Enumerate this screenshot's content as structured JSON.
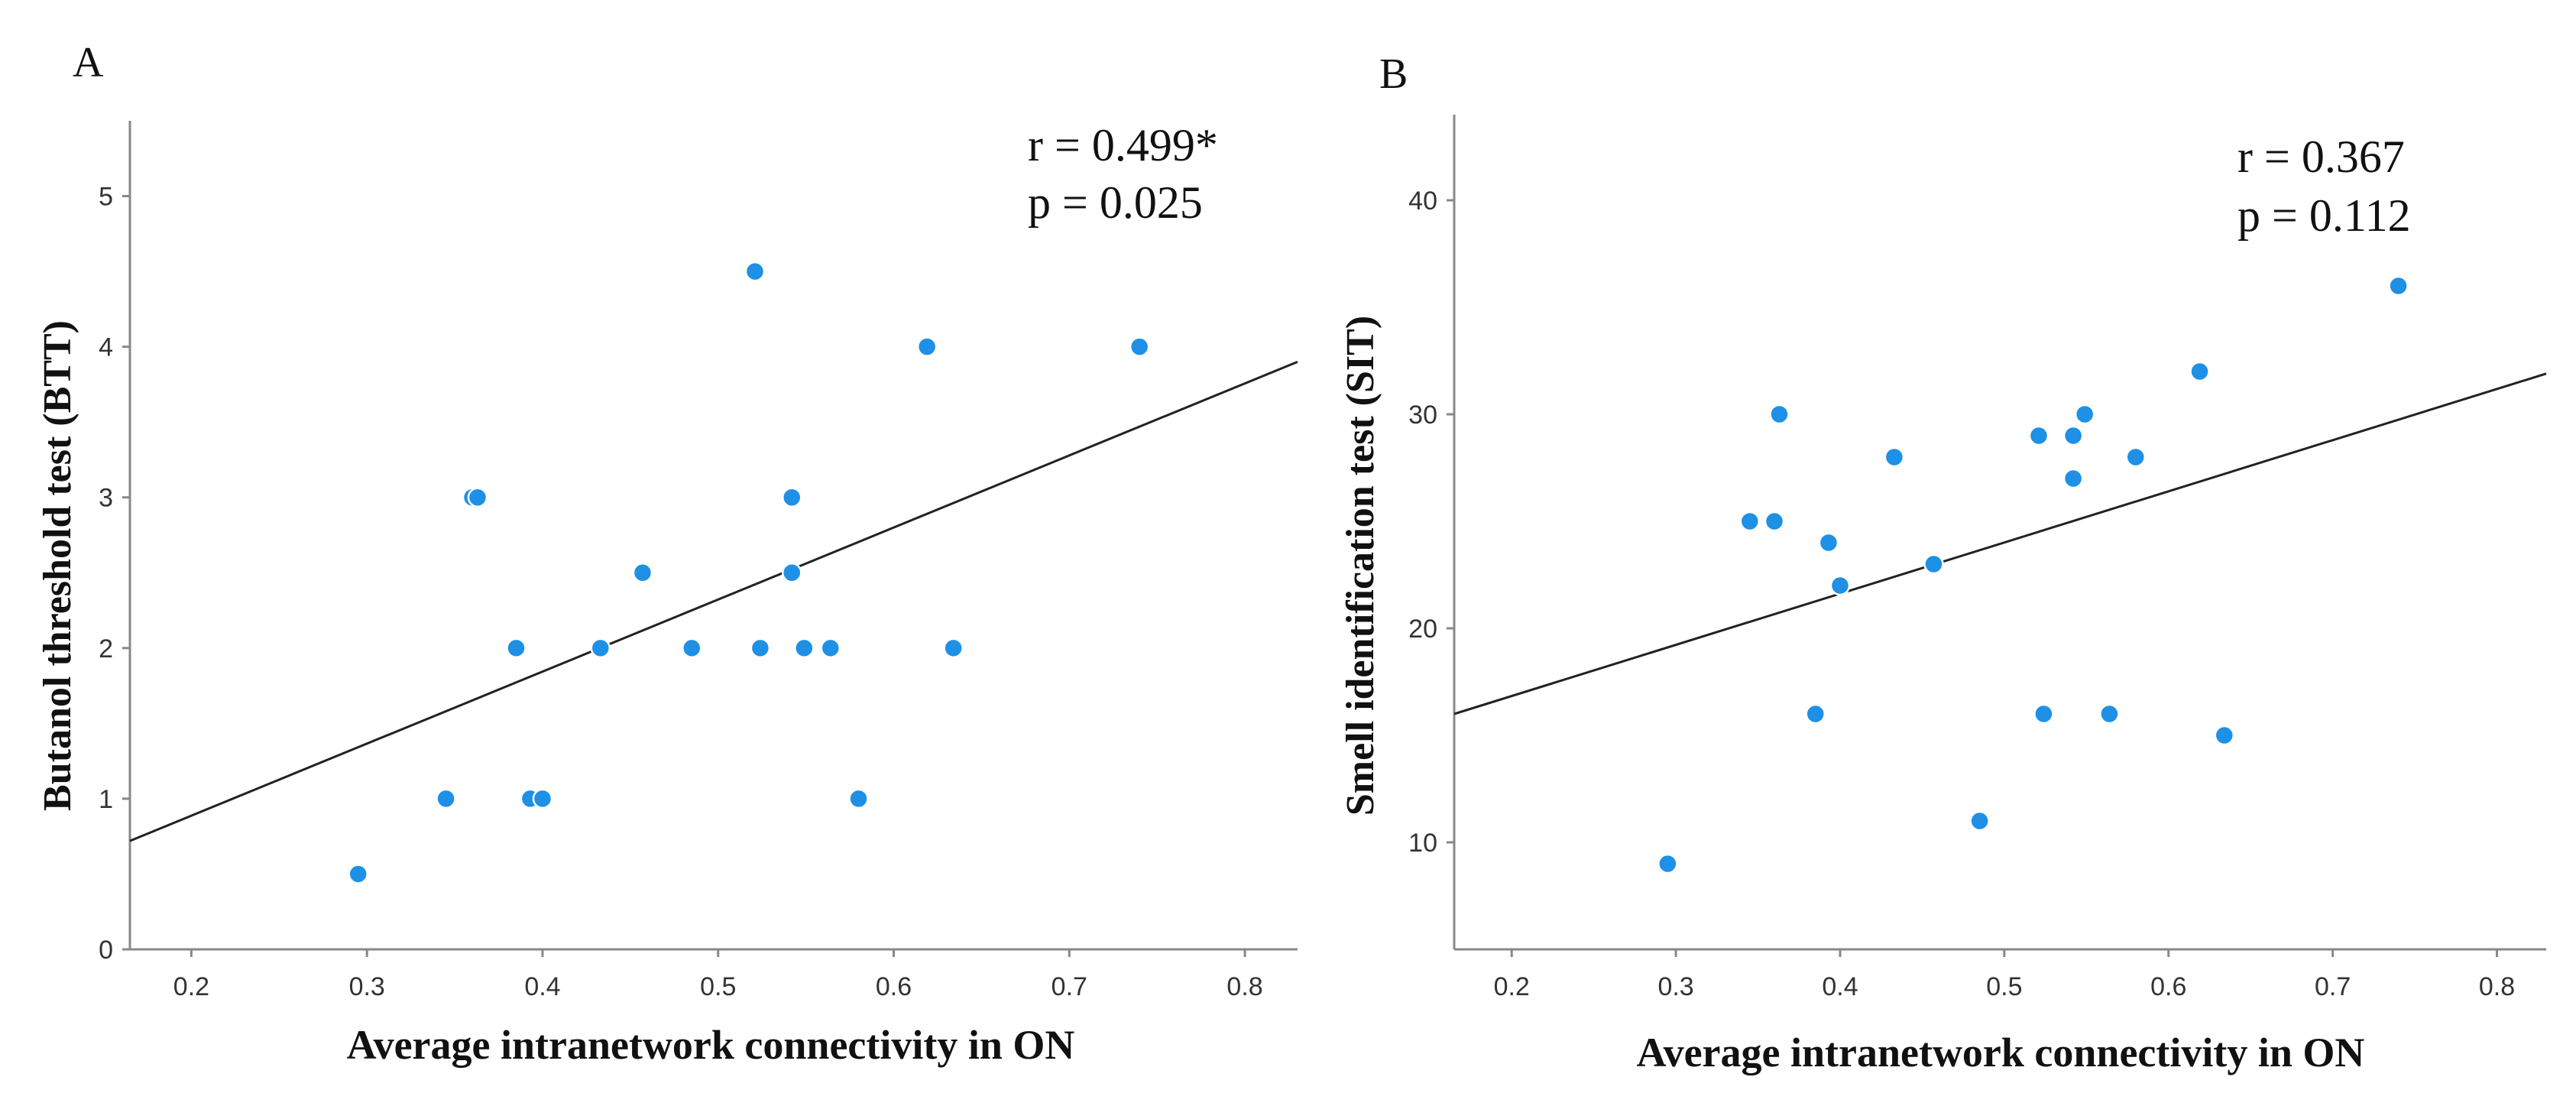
{
  "figure": {
    "marker_color": "#1e90e6",
    "line_color": "#222222"
  },
  "chart_data": [
    {
      "panel_label": "A",
      "type": "scatter",
      "xlabel": "Average intranetwork connectivity in ON",
      "ylabel": "Butanol threshold test (BTT)",
      "xlim": [
        0.165,
        0.83
      ],
      "ylim": [
        0,
        5.5
      ],
      "xticks": [
        "0.2",
        "0.3",
        "0.4",
        "0.5",
        "0.6",
        "0.7",
        "0.8"
      ],
      "yticks": [
        "0",
        "1",
        "2",
        "3",
        "4",
        "5"
      ],
      "annotation": {
        "r": "r = 0.499*",
        "p": "p = 0.025"
      },
      "fit_line": {
        "x": [
          0.165,
          0.83
        ],
        "y": [
          0.72,
          3.9
        ]
      },
      "points": [
        {
          "x": 0.295,
          "y": 0.5
        },
        {
          "x": 0.345,
          "y": 1.0
        },
        {
          "x": 0.36,
          "y": 3.0
        },
        {
          "x": 0.363,
          "y": 3.0
        },
        {
          "x": 0.385,
          "y": 2.0
        },
        {
          "x": 0.393,
          "y": 1.0
        },
        {
          "x": 0.4,
          "y": 1.0
        },
        {
          "x": 0.433,
          "y": 2.0
        },
        {
          "x": 0.457,
          "y": 2.5
        },
        {
          "x": 0.485,
          "y": 2.0
        },
        {
          "x": 0.521,
          "y": 4.5
        },
        {
          "x": 0.524,
          "y": 2.0
        },
        {
          "x": 0.542,
          "y": 3.0
        },
        {
          "x": 0.542,
          "y": 2.5
        },
        {
          "x": 0.549,
          "y": 2.0
        },
        {
          "x": 0.564,
          "y": 2.0
        },
        {
          "x": 0.58,
          "y": 1.0
        },
        {
          "x": 0.619,
          "y": 4.0
        },
        {
          "x": 0.634,
          "y": 2.0
        },
        {
          "x": 0.74,
          "y": 4.0
        }
      ]
    },
    {
      "panel_label": "B",
      "type": "scatter",
      "xlabel": "Average intranetwork connectivity in ON",
      "ylabel": "Smell identification test (SIT)",
      "xlim": [
        0.165,
        0.83
      ],
      "ylim": [
        5,
        44
      ],
      "xticks": [
        "0.2",
        "0.3",
        "0.4",
        "0.5",
        "0.6",
        "0.7",
        "0.8"
      ],
      "yticks": [
        "10",
        "20",
        "30",
        "40"
      ],
      "annotation": {
        "r": "r = 0.367",
        "p": "p = 0.112"
      },
      "fit_line": {
        "x": [
          0.165,
          0.83
        ],
        "y": [
          16.0,
          31.9
        ]
      },
      "points": [
        {
          "x": 0.295,
          "y": 9
        },
        {
          "x": 0.345,
          "y": 25
        },
        {
          "x": 0.36,
          "y": 25
        },
        {
          "x": 0.363,
          "y": 30
        },
        {
          "x": 0.385,
          "y": 16
        },
        {
          "x": 0.393,
          "y": 24
        },
        {
          "x": 0.4,
          "y": 22
        },
        {
          "x": 0.433,
          "y": 28
        },
        {
          "x": 0.457,
          "y": 23
        },
        {
          "x": 0.485,
          "y": 11
        },
        {
          "x": 0.521,
          "y": 29
        },
        {
          "x": 0.524,
          "y": 16
        },
        {
          "x": 0.542,
          "y": 29
        },
        {
          "x": 0.542,
          "y": 27
        },
        {
          "x": 0.549,
          "y": 30
        },
        {
          "x": 0.564,
          "y": 16
        },
        {
          "x": 0.58,
          "y": 28
        },
        {
          "x": 0.619,
          "y": 32
        },
        {
          "x": 0.634,
          "y": 15
        },
        {
          "x": 0.74,
          "y": 36
        }
      ]
    }
  ]
}
